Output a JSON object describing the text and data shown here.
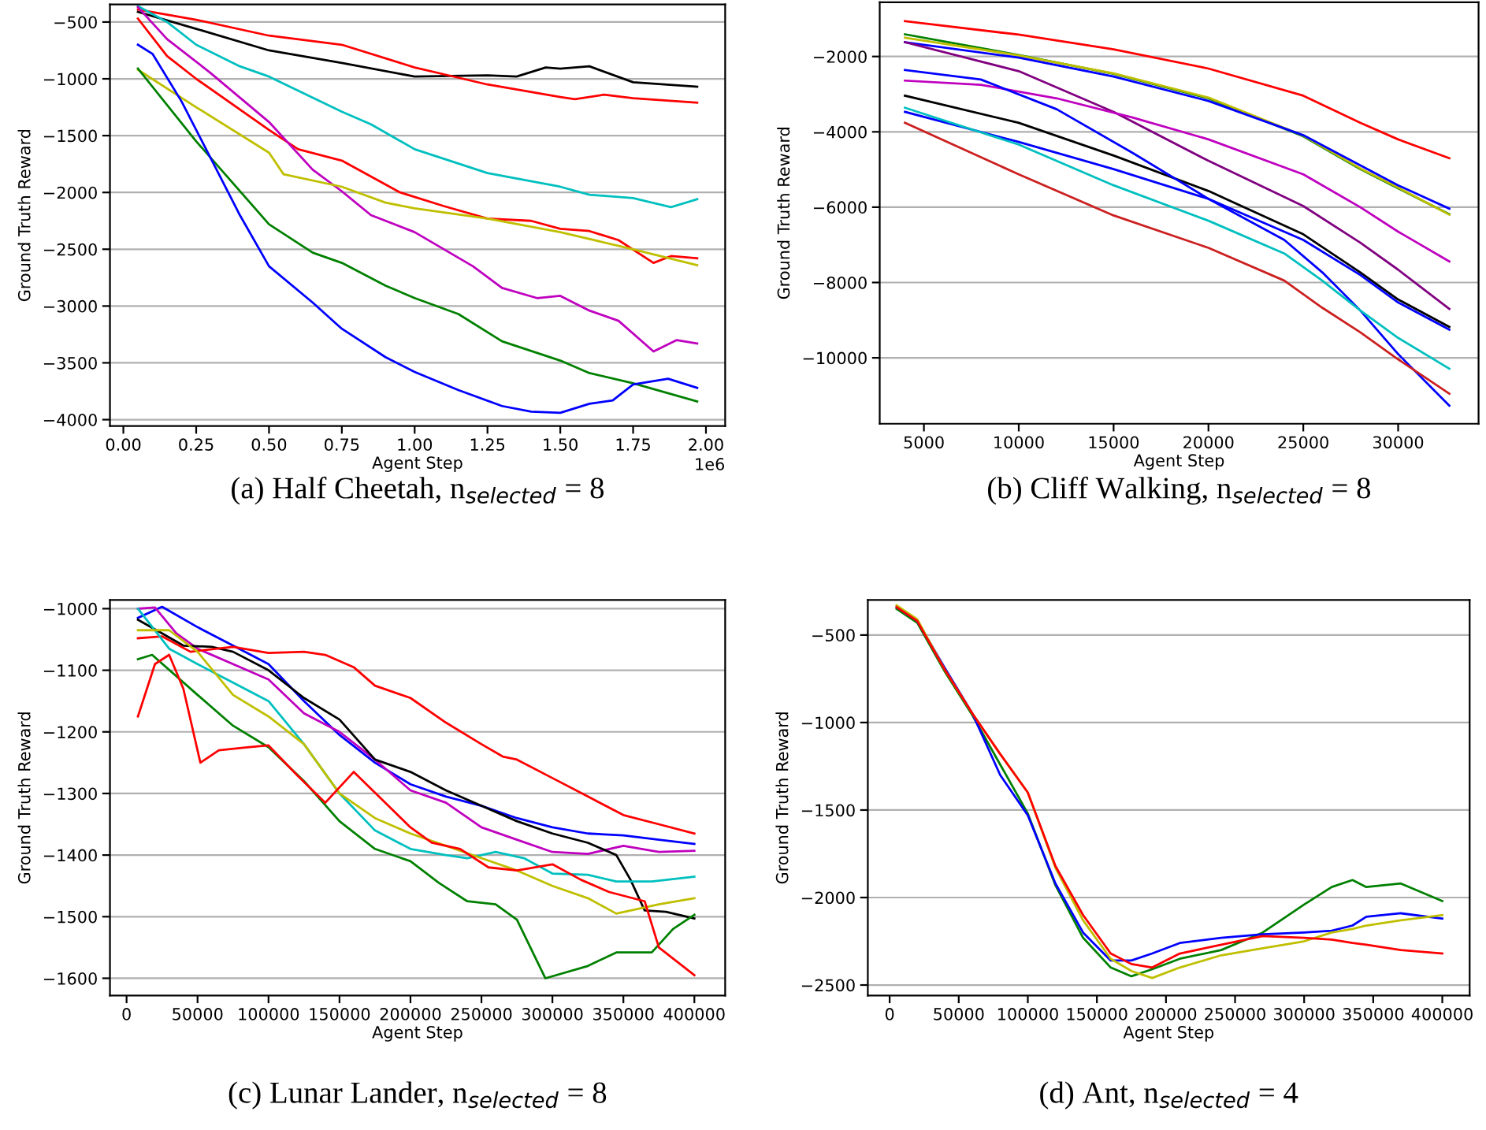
{
  "chart_data": [
    {
      "type": "line",
      "title": "(a) Half Cheetah, n$_{selected}$ = 8",
      "xlabel": "Agent Step",
      "ylabel": "Ground Truth Reward",
      "annotations": [
        "1e6"
      ],
      "grid": "y",
      "xlim": [
        -0.046,
        2.066
      ],
      "ylim": [
        -4056,
        -346
      ],
      "xticks": [
        {
          "value": 0,
          "label": "0.00"
        },
        {
          "value": 0.25,
          "label": "0.25"
        },
        {
          "value": 0.5,
          "label": "0.50"
        },
        {
          "value": 0.75,
          "label": "0.75"
        },
        {
          "value": 1.0,
          "label": "1.00"
        },
        {
          "value": 1.25,
          "label": "1.25"
        },
        {
          "value": 1.5,
          "label": "1.50"
        },
        {
          "value": 1.75,
          "label": "1.75"
        },
        {
          "value": 2.0,
          "label": "2.00"
        }
      ],
      "yticks": [
        {
          "value": -4000,
          "label": "−4000"
        },
        {
          "value": -3500,
          "label": "−3500"
        },
        {
          "value": -3000,
          "label": "−3000"
        },
        {
          "value": -2500,
          "label": "−2500"
        },
        {
          "value": -2000,
          "label": "−2000"
        },
        {
          "value": -1500,
          "label": "−1500"
        },
        {
          "value": -1000,
          "label": "−1000"
        },
        {
          "value": -500,
          "label": "−500"
        }
      ],
      "series": [
        {
          "color": "#000000",
          "x": [
            0.05,
            0.25,
            0.5,
            0.75,
            1.0,
            1.25,
            1.35,
            1.45,
            1.5,
            1.6,
            1.75,
            1.97
          ],
          "values": [
            -410,
            -560,
            -750,
            -860,
            -980,
            -970,
            -980,
            -900,
            -910,
            -890,
            -1030,
            -1070
          ]
        },
        {
          "color": "#ff0000",
          "x": [
            0.05,
            0.25,
            0.5,
            0.75,
            1.0,
            1.1,
            1.25,
            1.5,
            1.55,
            1.65,
            1.75,
            1.97
          ],
          "values": [
            -390,
            -480,
            -620,
            -700,
            -900,
            -960,
            -1050,
            -1160,
            -1180,
            -1140,
            -1170,
            -1210
          ]
        },
        {
          "color": "#00bfbf",
          "x": [
            0.05,
            0.15,
            0.25,
            0.4,
            0.5,
            0.75,
            0.85,
            1.0,
            1.25,
            1.5,
            1.6,
            1.75,
            1.88,
            1.97
          ],
          "values": [
            -360,
            -500,
            -700,
            -890,
            -980,
            -1290,
            -1400,
            -1620,
            -1830,
            -1950,
            -2020,
            -2050,
            -2130,
            -2060
          ]
        },
        {
          "color": "#ff0000",
          "x": [
            0.05,
            0.15,
            0.25,
            0.5,
            0.6,
            0.75,
            0.95,
            1.1,
            1.25,
            1.4,
            1.5,
            1.6,
            1.7,
            1.82,
            1.88,
            1.97
          ],
          "values": [
            -470,
            -800,
            -1000,
            -1450,
            -1620,
            -1720,
            -2000,
            -2120,
            -2230,
            -2250,
            -2320,
            -2340,
            -2420,
            -2620,
            -2560,
            -2580
          ]
        },
        {
          "color": "#bf00bf",
          "x": [
            0.05,
            0.15,
            0.3,
            0.5,
            0.65,
            0.75,
            0.85,
            1.0,
            1.2,
            1.3,
            1.42,
            1.5,
            1.6,
            1.7,
            1.82,
            1.9,
            1.97
          ],
          "values": [
            -370,
            -650,
            -950,
            -1380,
            -1800,
            -1990,
            -2200,
            -2350,
            -2650,
            -2840,
            -2930,
            -2910,
            -3040,
            -3130,
            -3400,
            -3300,
            -3330
          ]
        },
        {
          "color": "#bfbf00",
          "x": [
            0.05,
            0.25,
            0.5,
            0.55,
            0.75,
            0.9,
            1.0,
            1.25,
            1.5,
            1.75,
            1.97
          ],
          "values": [
            -920,
            -1250,
            -1650,
            -1840,
            -1950,
            -2090,
            -2140,
            -2230,
            -2350,
            -2500,
            -2640
          ]
        },
        {
          "color": "#008000",
          "x": [
            0.05,
            0.25,
            0.5,
            0.65,
            0.75,
            0.9,
            1.0,
            1.15,
            1.3,
            1.5,
            1.6,
            1.75,
            1.97
          ],
          "values": [
            -910,
            -1550,
            -2280,
            -2530,
            -2620,
            -2820,
            -2930,
            -3070,
            -3310,
            -3480,
            -3590,
            -3680,
            -3840
          ]
        },
        {
          "color": "#0000ff",
          "x": [
            0.05,
            0.1,
            0.2,
            0.3,
            0.4,
            0.5,
            0.65,
            0.75,
            0.9,
            1.0,
            1.15,
            1.3,
            1.4,
            1.5,
            1.6,
            1.68,
            1.75,
            1.87,
            1.97
          ],
          "values": [
            -700,
            -780,
            -1200,
            -1700,
            -2200,
            -2650,
            -2970,
            -3200,
            -3450,
            -3580,
            -3740,
            -3880,
            -3930,
            -3940,
            -3860,
            -3830,
            -3690,
            -3640,
            -3720
          ]
        }
      ]
    },
    {
      "type": "line",
      "title": "(b) Cliff Walking, n$_{selected}$ = 8",
      "xlabel": "Agent Step",
      "ylabel": "Ground Truth Reward",
      "grid": "y",
      "xlim": [
        2670,
        34240
      ],
      "ylim": [
        -11750,
        -560
      ],
      "xticks": [
        5000,
        10000,
        15000,
        20000,
        25000,
        30000
      ],
      "yticks": [
        {
          "value": -10000,
          "label": "−10000"
        },
        {
          "value": -8000,
          "label": "−8000"
        },
        {
          "value": -6000,
          "label": "−6000"
        },
        {
          "value": -4000,
          "label": "−4000"
        },
        {
          "value": -2000,
          "label": "−2000"
        }
      ],
      "series": [
        {
          "color": "#ff0000",
          "x": [
            4000,
            10000,
            15000,
            20000,
            25000,
            28000,
            30000,
            32700
          ],
          "values": [
            -1060,
            -1420,
            -1810,
            -2320,
            -3040,
            -3760,
            -4200,
            -4700
          ]
        },
        {
          "color": "#008000",
          "x": [
            4000,
            10000,
            15000,
            20000,
            25000,
            28000,
            30000,
            32700
          ],
          "values": [
            -1410,
            -1960,
            -2460,
            -3110,
            -4120,
            -4990,
            -5500,
            -6190
          ]
        },
        {
          "color": "#bfbf00",
          "x": [
            4000,
            10000,
            15000,
            20000,
            25000,
            28000,
            30000,
            32700
          ],
          "values": [
            -1500,
            -1970,
            -2450,
            -3090,
            -4100,
            -4970,
            -5480,
            -6200
          ]
        },
        {
          "color": "#0000ff",
          "x": [
            4000,
            10000,
            15000,
            20000,
            25000,
            30000,
            32700
          ],
          "values": [
            -1620,
            -2030,
            -2530,
            -3180,
            -4090,
            -5420,
            -6040
          ]
        },
        {
          "color": "#800080",
          "x": [
            4000,
            10000,
            15000,
            20000,
            25000,
            28000,
            30000,
            32700
          ],
          "values": [
            -1620,
            -2390,
            -3470,
            -4770,
            -5970,
            -6940,
            -7660,
            -8700
          ]
        },
        {
          "color": "#bf00bf",
          "x": [
            4000,
            8000,
            12000,
            16000,
            20000,
            25000,
            28000,
            30000,
            32700
          ],
          "values": [
            -2640,
            -2750,
            -3110,
            -3620,
            -4200,
            -5130,
            -6000,
            -6650,
            -7440
          ]
        },
        {
          "color": "#000000",
          "x": [
            4000,
            10000,
            15000,
            20000,
            25000,
            28000,
            30000,
            32700
          ],
          "values": [
            -3040,
            -3760,
            -4630,
            -5570,
            -6720,
            -7730,
            -8450,
            -9180
          ]
        },
        {
          "color": "#0000ff",
          "x": [
            4000,
            10000,
            15000,
            20000,
            25000,
            28000,
            30000,
            32700
          ],
          "values": [
            -3470,
            -4270,
            -4990,
            -5780,
            -6870,
            -7800,
            -8530,
            -9250
          ]
        },
        {
          "color": "#0000ff",
          "x": [
            4000,
            8000,
            12000,
            16000,
            20000,
            24000,
            26000,
            28000,
            30000,
            32700
          ],
          "values": [
            -2360,
            -2610,
            -3400,
            -4560,
            -5780,
            -6870,
            -7730,
            -8740,
            -9900,
            -11270
          ]
        },
        {
          "color": "#00bfbf",
          "x": [
            4000,
            10000,
            15000,
            20000,
            24000,
            26000,
            28000,
            30000,
            32700
          ],
          "values": [
            -3360,
            -4340,
            -5420,
            -6360,
            -7230,
            -7950,
            -8740,
            -9470,
            -10290
          ]
        },
        {
          "color": "#cc2020",
          "x": [
            4000,
            10000,
            15000,
            20000,
            24000,
            26000,
            28000,
            30000,
            32700
          ],
          "values": [
            -3760,
            -5130,
            -6220,
            -7080,
            -7950,
            -8670,
            -9320,
            -10040,
            -10950
          ]
        }
      ]
    },
    {
      "type": "line",
      "title": "(c) Lunar Lander, n$_{selected}$ = 8",
      "xlabel": "Agent Step",
      "ylabel": "Ground Truth Reward",
      "grid": "y",
      "xlim": [
        -11700,
        421700
      ],
      "ylim": [
        -1628,
        -986
      ],
      "xticks": [
        0,
        50000,
        100000,
        150000,
        200000,
        250000,
        300000,
        350000,
        400000
      ],
      "yticks": [
        {
          "value": -1600,
          "label": "−1600"
        },
        {
          "value": -1500,
          "label": "−1500"
        },
        {
          "value": -1400,
          "label": "−1400"
        },
        {
          "value": -1300,
          "label": "−1300"
        },
        {
          "value": -1200,
          "label": "−1200"
        },
        {
          "value": -1100,
          "label": "−1100"
        },
        {
          "value": -1000,
          "label": "−1000"
        }
      ],
      "series": [
        {
          "color": "#0000ff",
          "x": [
            8000,
            25000,
            50000,
            75000,
            100000,
            125000,
            150000,
            175000,
            200000,
            225000,
            250000,
            275000,
            300000,
            325000,
            350000,
            375000,
            400000
          ],
          "values": [
            -1015,
            -997,
            -1030,
            -1060,
            -1090,
            -1150,
            -1205,
            -1250,
            -1285,
            -1305,
            -1320,
            -1340,
            -1355,
            -1365,
            -1368,
            -1375,
            -1382
          ]
        },
        {
          "color": "#bf00bf",
          "x": [
            8000,
            20000,
            35000,
            50000,
            75000,
            100000,
            125000,
            150000,
            175000,
            200000,
            225000,
            250000,
            275000,
            300000,
            325000,
            350000,
            375000,
            400000
          ],
          "values": [
            -1000,
            -998,
            -1040,
            -1065,
            -1090,
            -1115,
            -1170,
            -1200,
            -1245,
            -1295,
            -1315,
            -1355,
            -1375,
            -1395,
            -1398,
            -1385,
            -1395,
            -1393
          ]
        },
        {
          "color": "#000000",
          "x": [
            8000,
            25000,
            40000,
            60000,
            75000,
            100000,
            125000,
            150000,
            175000,
            200000,
            225000,
            250000,
            275000,
            300000,
            325000,
            345000,
            355000,
            365000,
            380000,
            400000
          ],
          "values": [
            -1018,
            -1040,
            -1060,
            -1062,
            -1070,
            -1100,
            -1145,
            -1180,
            -1245,
            -1265,
            -1295,
            -1320,
            -1345,
            -1365,
            -1380,
            -1400,
            -1440,
            -1490,
            -1492,
            -1503
          ]
        },
        {
          "color": "#ff0000",
          "x": [
            8000,
            25000,
            45000,
            75000,
            100000,
            125000,
            140000,
            160000,
            175000,
            200000,
            225000,
            250000,
            265000,
            275000,
            300000,
            325000,
            350000,
            375000,
            400000
          ],
          "values": [
            -1048,
            -1045,
            -1070,
            -1062,
            -1072,
            -1070,
            -1075,
            -1095,
            -1125,
            -1145,
            -1185,
            -1220,
            -1240,
            -1245,
            -1275,
            -1305,
            -1335,
            -1350,
            -1365
          ]
        },
        {
          "color": "#00bfbf",
          "x": [
            8000,
            30000,
            50000,
            75000,
            100000,
            125000,
            150000,
            175000,
            200000,
            225000,
            240000,
            260000,
            280000,
            300000,
            325000,
            345000,
            370000,
            400000
          ],
          "values": [
            -1000,
            -1065,
            -1090,
            -1120,
            -1150,
            -1220,
            -1300,
            -1360,
            -1390,
            -1400,
            -1405,
            -1395,
            -1405,
            -1430,
            -1432,
            -1443,
            -1443,
            -1435
          ]
        },
        {
          "color": "#bfbf00",
          "x": [
            8000,
            30000,
            50000,
            75000,
            100000,
            125000,
            150000,
            175000,
            200000,
            225000,
            250000,
            275000,
            300000,
            325000,
            345000,
            375000,
            400000
          ],
          "values": [
            -1035,
            -1035,
            -1070,
            -1140,
            -1175,
            -1220,
            -1300,
            -1340,
            -1365,
            -1385,
            -1405,
            -1425,
            -1450,
            -1470,
            -1495,
            -1480,
            -1470
          ]
        },
        {
          "color": "#008000",
          "x": [
            8000,
            18000,
            50000,
            75000,
            100000,
            125000,
            150000,
            175000,
            200000,
            220000,
            240000,
            260000,
            275000,
            295000,
            325000,
            345000,
            370000,
            385000,
            400000
          ],
          "values": [
            -1082,
            -1075,
            -1140,
            -1190,
            -1225,
            -1280,
            -1345,
            -1390,
            -1410,
            -1445,
            -1475,
            -1480,
            -1505,
            -1600,
            -1580,
            -1558,
            -1558,
            -1520,
            -1497
          ]
        },
        {
          "color": "#ff0000",
          "x": [
            8000,
            20000,
            30000,
            40000,
            52000,
            65000,
            85000,
            100000,
            120000,
            140000,
            160000,
            180000,
            200000,
            215000,
            235000,
            255000,
            275000,
            300000,
            320000,
            340000,
            365000,
            375000,
            400000
          ],
          "values": [
            -1175,
            -1090,
            -1075,
            -1130,
            -1250,
            -1230,
            -1225,
            -1222,
            -1270,
            -1315,
            -1265,
            -1310,
            -1355,
            -1380,
            -1390,
            -1420,
            -1425,
            -1415,
            -1440,
            -1460,
            -1475,
            -1550,
            -1595
          ]
        }
      ]
    },
    {
      "type": "line",
      "title": "(d) Ant, n$_{selected}$ = 4",
      "xlabel": "Agent Step",
      "ylabel": "Ground Truth Reward",
      "grid": "y",
      "xlim": [
        -15800,
        419800
      ],
      "ylim": [
        -2560,
        -300
      ],
      "xticks": [
        0,
        50000,
        100000,
        150000,
        200000,
        250000,
        300000,
        350000,
        400000
      ],
      "yticks": [
        {
          "value": -2500,
          "label": "−2500"
        },
        {
          "value": -2000,
          "label": "−2000"
        },
        {
          "value": -1500,
          "label": "−1500"
        },
        {
          "value": -1000,
          "label": "−1000"
        },
        {
          "value": -500,
          "label": "−500"
        }
      ],
      "series": [
        {
          "color": "#008000",
          "x": [
            5000,
            20000,
            40000,
            60000,
            80000,
            100000,
            120000,
            140000,
            160000,
            175000,
            190000,
            210000,
            240000,
            270000,
            300000,
            320000,
            335000,
            345000,
            370000,
            400000
          ],
          "values": [
            -350,
            -430,
            -710,
            -960,
            -1240,
            -1520,
            -1930,
            -2230,
            -2400,
            -2450,
            -2410,
            -2350,
            -2300,
            -2200,
            -2040,
            -1940,
            -1900,
            -1940,
            -1920,
            -2020
          ]
        },
        {
          "color": "#0000ff",
          "x": [
            5000,
            20000,
            40000,
            60000,
            80000,
            100000,
            120000,
            140000,
            160000,
            175000,
            190000,
            210000,
            240000,
            270000,
            300000,
            320000,
            335000,
            345000,
            370000,
            400000
          ],
          "values": [
            -340,
            -420,
            -690,
            -950,
            -1300,
            -1530,
            -1920,
            -2200,
            -2360,
            -2360,
            -2320,
            -2260,
            -2230,
            -2210,
            -2200,
            -2190,
            -2160,
            -2110,
            -2090,
            -2120
          ]
        },
        {
          "color": "#bfbf00",
          "x": [
            5000,
            20000,
            40000,
            60000,
            80000,
            100000,
            120000,
            140000,
            160000,
            175000,
            190000,
            210000,
            240000,
            270000,
            300000,
            320000,
            335000,
            345000,
            370000,
            400000
          ],
          "values": [
            -330,
            -410,
            -700,
            -950,
            -1180,
            -1400,
            -1830,
            -2130,
            -2350,
            -2420,
            -2460,
            -2400,
            -2330,
            -2290,
            -2250,
            -2200,
            -2180,
            -2160,
            -2130,
            -2100
          ]
        },
        {
          "color": "#ff0000",
          "x": [
            5000,
            20000,
            40000,
            60000,
            80000,
            100000,
            120000,
            140000,
            160000,
            175000,
            190000,
            210000,
            240000,
            270000,
            300000,
            320000,
            335000,
            345000,
            370000,
            400000
          ],
          "values": [
            -340,
            -420,
            -700,
            -950,
            -1180,
            -1400,
            -1820,
            -2100,
            -2320,
            -2380,
            -2400,
            -2320,
            -2270,
            -2220,
            -2230,
            -2240,
            -2260,
            -2270,
            -2300,
            -2320
          ]
        }
      ]
    }
  ]
}
